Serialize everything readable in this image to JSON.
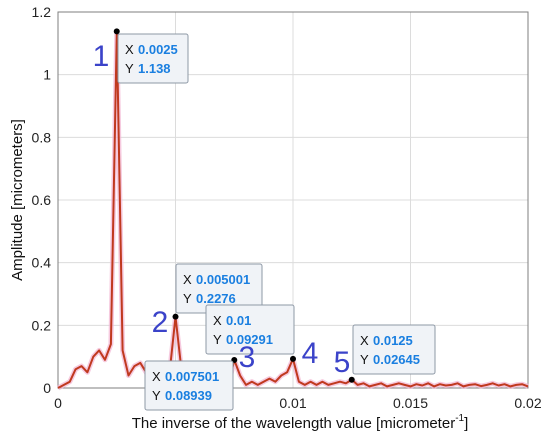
{
  "chart_data": {
    "type": "line",
    "xlabel": "The inverse of the wavelength value  [micrometer",
    "xlabel_sup": "-1",
    "xlabel_end": "]",
    "ylabel": "Amplitude [micrometers]",
    "xlim": [
      0,
      0.02
    ],
    "ylim": [
      0,
      1.2
    ],
    "x_ticks": [
      0,
      0.005,
      0.01,
      0.015,
      0.02
    ],
    "x_tick_labels": [
      "0",
      "0.005",
      "0.01",
      "0.015",
      "0.02"
    ],
    "y_ticks": [
      0,
      0.2,
      0.4,
      0.6,
      0.8,
      1,
      1.2
    ],
    "y_tick_labels": [
      "0",
      "0.2",
      "0.4",
      "0.6",
      "0.8",
      "1",
      "1.2"
    ],
    "grid": true,
    "line_color": "#c0391f",
    "marker_color": "#000000",
    "peak_label_color": "#3b43c9",
    "series": [
      {
        "x": [
          0,
          0.00025,
          0.0005,
          0.00075,
          0.001,
          0.00125,
          0.0015,
          0.00175,
          0.002,
          0.00225,
          0.0025,
          0.00275,
          0.003,
          0.00325,
          0.0035,
          0.00375,
          0.004,
          0.00425,
          0.0045,
          0.00475,
          0.005001,
          0.00525,
          0.0055,
          0.00575,
          0.006,
          0.00625,
          0.0065,
          0.00675,
          0.007,
          0.00725,
          0.007501,
          0.00775,
          0.008,
          0.00825,
          0.0085,
          0.00875,
          0.009,
          0.00925,
          0.0095,
          0.00975,
          0.01,
          0.01025,
          0.0105,
          0.01075,
          0.011,
          0.01125,
          0.0115,
          0.01175,
          0.012,
          0.01225,
          0.0125,
          0.01275,
          0.013,
          0.01325,
          0.0135,
          0.01375,
          0.014,
          0.01425,
          0.0145,
          0.01475,
          0.015,
          0.01525,
          0.0155,
          0.01575,
          0.016,
          0.01625,
          0.0165,
          0.01675,
          0.017,
          0.01725,
          0.0175,
          0.01775,
          0.018,
          0.01825,
          0.0185,
          0.01875,
          0.019,
          0.01925,
          0.0195,
          0.01975,
          0.02
        ],
        "y": [
          0.0,
          0.01,
          0.02,
          0.06,
          0.07,
          0.05,
          0.1,
          0.12,
          0.09,
          0.14,
          1.138,
          0.12,
          0.04,
          0.07,
          0.08,
          0.05,
          0.02,
          0.01,
          0.03,
          0.05,
          0.2276,
          0.06,
          0.01,
          0.02,
          0.01,
          0.02,
          0.04,
          0.05,
          0.02,
          0.01,
          0.08939,
          0.04,
          0.01,
          0.02,
          0.01,
          0.02,
          0.03,
          0.02,
          0.04,
          0.05,
          0.09291,
          0.02,
          0.01,
          0.02,
          0.01,
          0.02,
          0.01,
          0.015,
          0.02,
          0.015,
          0.02645,
          0.01,
          0.015,
          0.005,
          0.01,
          0.015,
          0.005,
          0.01,
          0.015,
          0.01,
          0.005,
          0.012,
          0.008,
          0.015,
          0.005,
          0.012,
          0.008,
          0.01,
          0.015,
          0.005,
          0.01,
          0.012,
          0.006,
          0.01,
          0.015,
          0.008,
          0.012,
          0.005,
          0.01,
          0.012,
          0.005
        ]
      }
    ],
    "annotations": [
      {
        "number": "1",
        "x_key": "X",
        "x_value": "0.0025",
        "y_key": "Y",
        "y_value": "1.138",
        "px": 0.0025,
        "py": 1.138
      },
      {
        "number": "2",
        "x_key": "X",
        "x_value": "0.005001",
        "y_key": "Y",
        "y_value": "0.2276",
        "px": 0.005001,
        "py": 0.2276
      },
      {
        "number": "3",
        "x_key": "X",
        "x_value": "0.007501",
        "y_key": "Y",
        "y_value": "0.08939",
        "px": 0.007501,
        "py": 0.08939
      },
      {
        "number": "4",
        "x_key": "X",
        "x_value": "0.01",
        "y_key": "Y",
        "y_value": "0.09291",
        "px": 0.01,
        "py": 0.09291
      },
      {
        "number": "5",
        "x_key": "X",
        "x_value": "0.0125",
        "y_key": "Y",
        "y_value": "0.02645",
        "px": 0.0125,
        "py": 0.02645
      }
    ]
  }
}
